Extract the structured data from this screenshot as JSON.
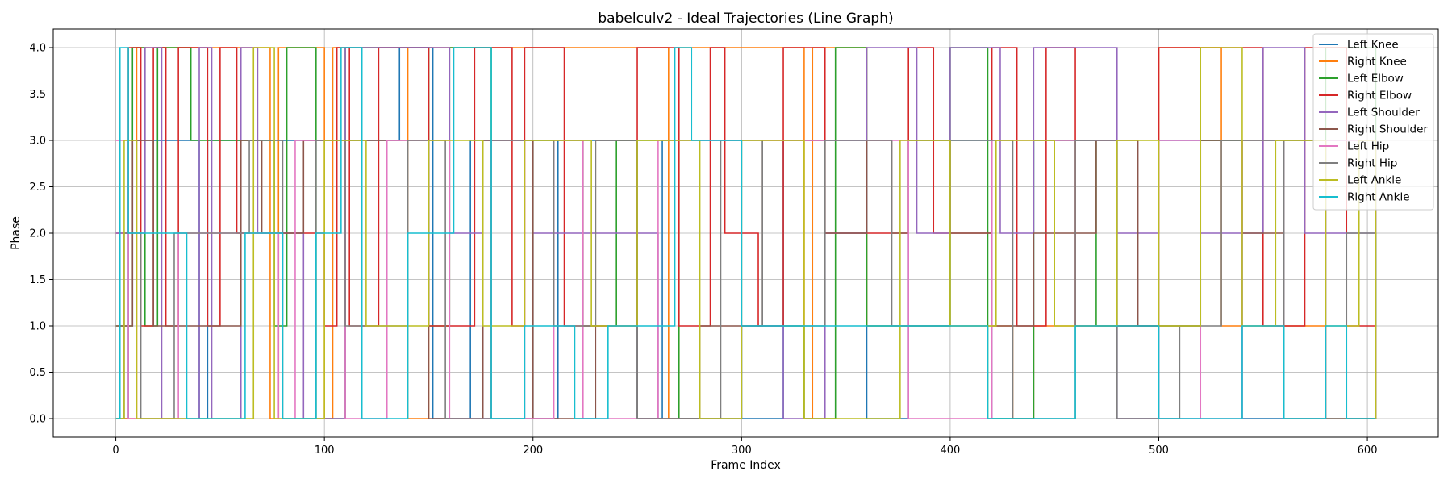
{
  "chart_data": {
    "type": "line",
    "title": "babelculv2 - Ideal Trajectories (Line Graph)",
    "xlabel": "Frame Index",
    "ylabel": "Phase",
    "xlim": [
      -30,
      634
    ],
    "ylim": [
      -0.2,
      4.2
    ],
    "xticks": [
      0,
      100,
      200,
      300,
      400,
      500,
      600
    ],
    "yticks": [
      0.0,
      0.5,
      1.0,
      1.5,
      2.0,
      2.5,
      3.0,
      3.5,
      4.0
    ],
    "ytick_labels": [
      "0.0",
      "0.5",
      "1.0",
      "1.5",
      "2.0",
      "2.5",
      "3.0",
      "3.5",
      "4.0"
    ],
    "grid": true,
    "legend_position": "top-right",
    "series": [
      {
        "name": "Left Knee",
        "color": "#1f77b4",
        "segments": [
          [
            0,
            0
          ],
          [
            6,
            3
          ],
          [
            40,
            0
          ],
          [
            44,
            3
          ],
          [
            120,
            3
          ],
          [
            136,
            4
          ],
          [
            152,
            0
          ],
          [
            170,
            3
          ],
          [
            200,
            0
          ],
          [
            212,
            3
          ],
          [
            250,
            0
          ],
          [
            262,
            3
          ],
          [
            300,
            0
          ],
          [
            320,
            3
          ],
          [
            360,
            0
          ],
          [
            380,
            3
          ],
          [
            420,
            0
          ],
          [
            440,
            3
          ],
          [
            480,
            0
          ],
          [
            500,
            3
          ],
          [
            540,
            0
          ],
          [
            560,
            3
          ],
          [
            590,
            0
          ],
          [
            604,
            3
          ]
        ]
      },
      {
        "name": "Right Knee",
        "color": "#ff7f0e",
        "segments": [
          [
            0,
            0
          ],
          [
            10,
            4
          ],
          [
            74,
            0
          ],
          [
            78,
            4
          ],
          [
            100,
            0
          ],
          [
            104,
            4
          ],
          [
            140,
            0
          ],
          [
            150,
            4
          ],
          [
            265,
            0
          ],
          [
            270,
            4
          ],
          [
            300,
            4
          ],
          [
            330,
            0
          ],
          [
            334,
            4
          ],
          [
            360,
            1
          ],
          [
            370,
            1
          ],
          [
            410,
            1
          ],
          [
            430,
            0
          ],
          [
            440,
            1
          ],
          [
            480,
            1
          ],
          [
            500,
            4
          ],
          [
            530,
            1
          ],
          [
            560,
            1
          ],
          [
            580,
            0
          ],
          [
            604,
            1
          ]
        ]
      },
      {
        "name": "Left Elbow",
        "color": "#2ca02c",
        "segments": [
          [
            0,
            1
          ],
          [
            8,
            4
          ],
          [
            14,
            1
          ],
          [
            20,
            4
          ],
          [
            36,
            3
          ],
          [
            76,
            1
          ],
          [
            82,
            4
          ],
          [
            96,
            0
          ],
          [
            110,
            4
          ],
          [
            150,
            1
          ],
          [
            160,
            4
          ],
          [
            180,
            0
          ],
          [
            200,
            3
          ],
          [
            224,
            1
          ],
          [
            240,
            3
          ],
          [
            270,
            0
          ],
          [
            300,
            1
          ],
          [
            330,
            0
          ],
          [
            345,
            4
          ],
          [
            360,
            1
          ],
          [
            372,
            1
          ],
          [
            400,
            4
          ],
          [
            418,
            0
          ],
          [
            440,
            3
          ],
          [
            470,
            1
          ],
          [
            500,
            1
          ],
          [
            520,
            3
          ],
          [
            560,
            0
          ],
          [
            580,
            4
          ],
          [
            604,
            1
          ]
        ]
      },
      {
        "name": "Right Elbow",
        "color": "#d62728",
        "segments": [
          [
            0,
            2
          ],
          [
            6,
            4
          ],
          [
            12,
            1
          ],
          [
            18,
            4
          ],
          [
            24,
            1
          ],
          [
            30,
            4
          ],
          [
            44,
            1
          ],
          [
            50,
            4
          ],
          [
            58,
            2
          ],
          [
            100,
            1
          ],
          [
            106,
            4
          ],
          [
            112,
            1
          ],
          [
            126,
            4
          ],
          [
            150,
            1
          ],
          [
            172,
            4
          ],
          [
            190,
            1
          ],
          [
            196,
            4
          ],
          [
            215,
            1
          ],
          [
            250,
            4
          ],
          [
            270,
            1
          ],
          [
            285,
            4
          ],
          [
            292,
            2
          ],
          [
            308,
            1
          ],
          [
            320,
            4
          ],
          [
            340,
            2
          ],
          [
            380,
            4
          ],
          [
            392,
            2
          ],
          [
            420,
            4
          ],
          [
            432,
            1
          ],
          [
            446,
            4
          ],
          [
            460,
            1
          ],
          [
            490,
            1
          ],
          [
            500,
            4
          ],
          [
            520,
            4
          ],
          [
            550,
            1
          ],
          [
            570,
            4
          ],
          [
            590,
            1
          ],
          [
            604,
            1
          ]
        ]
      },
      {
        "name": "Left Shoulder",
        "color": "#9467bd",
        "segments": [
          [
            0,
            2
          ],
          [
            14,
            4
          ],
          [
            22,
            0
          ],
          [
            40,
            4
          ],
          [
            46,
            0
          ],
          [
            60,
            4
          ],
          [
            68,
            2
          ],
          [
            90,
            0
          ],
          [
            110,
            4
          ],
          [
            140,
            4
          ],
          [
            160,
            2
          ],
          [
            176,
            0
          ],
          [
            200,
            2
          ],
          [
            240,
            2
          ],
          [
            260,
            0
          ],
          [
            300,
            1
          ],
          [
            320,
            0
          ],
          [
            340,
            2
          ],
          [
            360,
            4
          ],
          [
            384,
            2
          ],
          [
            400,
            4
          ],
          [
            424,
            2
          ],
          [
            440,
            4
          ],
          [
            460,
            4
          ],
          [
            480,
            2
          ],
          [
            500,
            0
          ],
          [
            520,
            2
          ],
          [
            550,
            4
          ],
          [
            570,
            2
          ],
          [
            604,
            3
          ]
        ]
      },
      {
        "name": "Right Shoulder",
        "color": "#8c564b",
        "segments": [
          [
            0,
            1
          ],
          [
            8,
            3
          ],
          [
            18,
            1
          ],
          [
            28,
            1
          ],
          [
            60,
            3
          ],
          [
            70,
            2
          ],
          [
            90,
            3
          ],
          [
            130,
            3
          ],
          [
            150,
            0
          ],
          [
            176,
            3
          ],
          [
            200,
            0
          ],
          [
            230,
            3
          ],
          [
            250,
            0
          ],
          [
            280,
            1
          ],
          [
            310,
            3
          ],
          [
            340,
            2
          ],
          [
            360,
            3
          ],
          [
            372,
            2
          ],
          [
            380,
            3
          ],
          [
            400,
            2
          ],
          [
            420,
            1
          ],
          [
            440,
            2
          ],
          [
            470,
            3
          ],
          [
            490,
            1
          ],
          [
            520,
            3
          ],
          [
            540,
            2
          ],
          [
            560,
            3
          ],
          [
            580,
            0
          ],
          [
            604,
            2
          ]
        ]
      },
      {
        "name": "Left Hip",
        "color": "#e377c2",
        "segments": [
          [
            0,
            3
          ],
          [
            6,
            0
          ],
          [
            18,
            0
          ],
          [
            30,
            2
          ],
          [
            50,
            2
          ],
          [
            78,
            0
          ],
          [
            86,
            3
          ],
          [
            110,
            0
          ],
          [
            130,
            3
          ],
          [
            160,
            0
          ],
          [
            180,
            3
          ],
          [
            196,
            0
          ],
          [
            210,
            3
          ],
          [
            224,
            0
          ],
          [
            260,
            3
          ],
          [
            290,
            3
          ],
          [
            330,
            3
          ],
          [
            360,
            3
          ],
          [
            380,
            0
          ],
          [
            420,
            3
          ],
          [
            440,
            3
          ],
          [
            470,
            3
          ],
          [
            480,
            0
          ],
          [
            500,
            3
          ],
          [
            520,
            0
          ],
          [
            540,
            3
          ],
          [
            560,
            0
          ],
          [
            580,
            3
          ],
          [
            604,
            2
          ]
        ]
      },
      {
        "name": "Right Hip",
        "color": "#7f7f7f",
        "segments": [
          [
            0,
            0
          ],
          [
            4,
            2
          ],
          [
            12,
            0
          ],
          [
            28,
            2
          ],
          [
            64,
            3
          ],
          [
            80,
            0
          ],
          [
            96,
            3
          ],
          [
            110,
            1
          ],
          [
            140,
            3
          ],
          [
            158,
            0
          ],
          [
            180,
            3
          ],
          [
            210,
            1
          ],
          [
            230,
            3
          ],
          [
            250,
            0
          ],
          [
            290,
            3
          ],
          [
            310,
            1
          ],
          [
            340,
            3
          ],
          [
            372,
            1
          ],
          [
            400,
            3
          ],
          [
            430,
            0
          ],
          [
            460,
            3
          ],
          [
            480,
            0
          ],
          [
            510,
            1
          ],
          [
            530,
            3
          ],
          [
            560,
            0
          ],
          [
            590,
            2
          ],
          [
            604,
            1
          ]
        ]
      },
      {
        "name": "Left Ankle",
        "color": "#bcbd22",
        "segments": [
          [
            0,
            0
          ],
          [
            4,
            3
          ],
          [
            10,
            0
          ],
          [
            30,
            0
          ],
          [
            66,
            4
          ],
          [
            76,
            0
          ],
          [
            100,
            3
          ],
          [
            120,
            1
          ],
          [
            150,
            3
          ],
          [
            176,
            1
          ],
          [
            196,
            3
          ],
          [
            228,
            1
          ],
          [
            250,
            3
          ],
          [
            280,
            0
          ],
          [
            300,
            3
          ],
          [
            330,
            0
          ],
          [
            376,
            3
          ],
          [
            400,
            1
          ],
          [
            422,
            3
          ],
          [
            450,
            1
          ],
          [
            480,
            3
          ],
          [
            500,
            1
          ],
          [
            520,
            4
          ],
          [
            540,
            1
          ],
          [
            556,
            3
          ],
          [
            580,
            1
          ],
          [
            596,
            3
          ],
          [
            604,
            0
          ]
        ]
      },
      {
        "name": "Right Ankle",
        "color": "#17becf",
        "segments": [
          [
            0,
            0
          ],
          [
            2,
            4
          ],
          [
            6,
            2
          ],
          [
            20,
            2
          ],
          [
            34,
            0
          ],
          [
            62,
            2
          ],
          [
            80,
            0
          ],
          [
            96,
            2
          ],
          [
            108,
            4
          ],
          [
            118,
            0
          ],
          [
            140,
            2
          ],
          [
            162,
            4
          ],
          [
            180,
            0
          ],
          [
            196,
            1
          ],
          [
            220,
            0
          ],
          [
            236,
            1
          ],
          [
            268,
            4
          ],
          [
            276,
            3
          ],
          [
            300,
            1
          ],
          [
            400,
            1
          ],
          [
            418,
            0
          ],
          [
            460,
            1
          ],
          [
            500,
            0
          ],
          [
            540,
            1
          ],
          [
            560,
            0
          ],
          [
            580,
            1
          ],
          [
            590,
            0
          ],
          [
            604,
            0
          ]
        ]
      }
    ]
  }
}
